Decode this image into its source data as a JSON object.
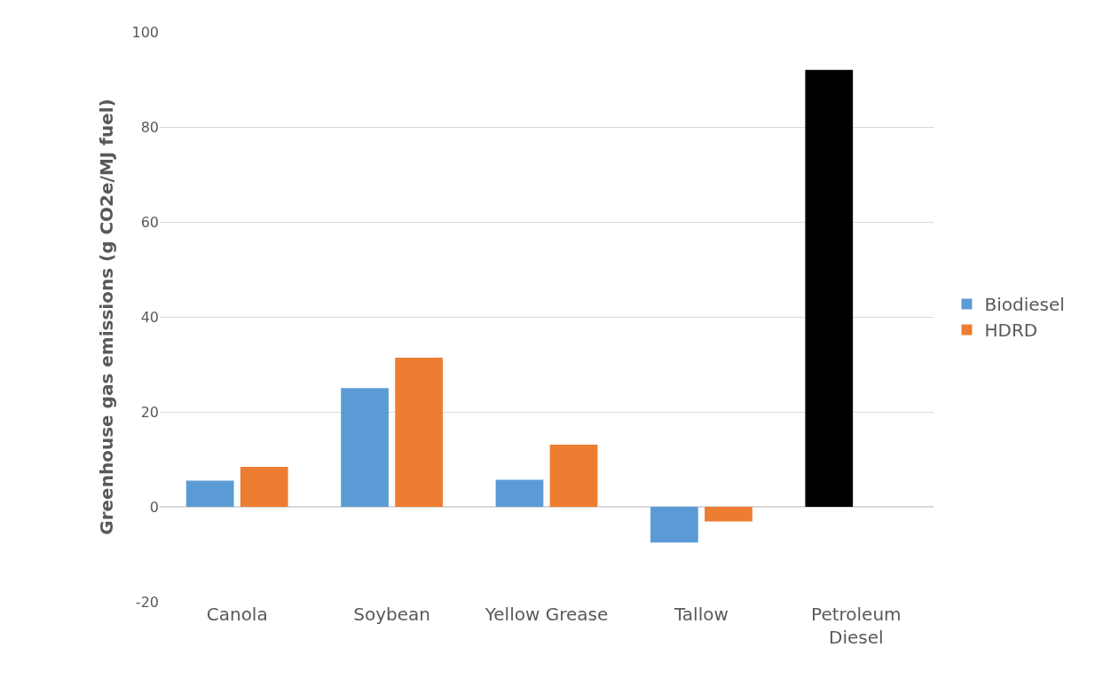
{
  "chart_data": {
    "type": "bar",
    "ylabel": "Greenhouse gas emissions (g CO2e/MJ fuel)",
    "categories": [
      "Canola",
      "Soybean",
      "Yellow Grease",
      "Tallow",
      "Petroleum Diesel"
    ],
    "series": [
      {
        "name": "Biodiesel",
        "color": "#5b9bd5",
        "colors": [
          "#5b9bd5",
          "#5b9bd5",
          "#5b9bd5",
          "#5b9bd5",
          "#000000"
        ],
        "values": [
          5.5,
          25.0,
          5.7,
          -7.5,
          92
        ]
      },
      {
        "name": "HDRD",
        "color": "#ed7d31",
        "values": [
          8.4,
          31.4,
          13.1,
          -3.1,
          null
        ]
      }
    ],
    "ylim": [
      -20,
      100
    ],
    "yticks": [
      -20,
      0,
      20,
      40,
      60,
      80,
      100
    ],
    "grid": "y",
    "legend": "right"
  }
}
